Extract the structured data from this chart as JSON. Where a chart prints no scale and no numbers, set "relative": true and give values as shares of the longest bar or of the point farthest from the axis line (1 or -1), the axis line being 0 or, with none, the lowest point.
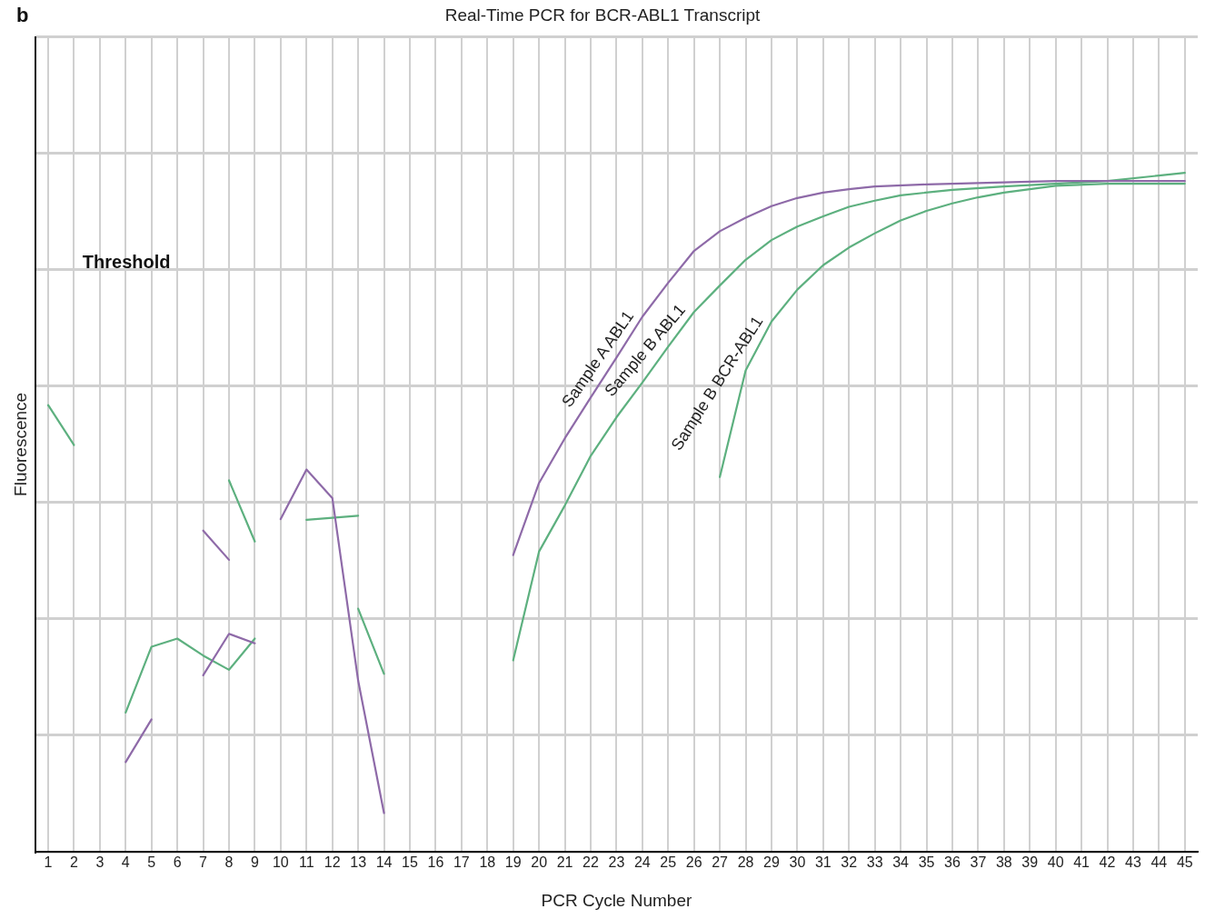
{
  "chart_data": {
    "type": "line",
    "title": "Real-Time PCR for BCR-ABL1 Transcript",
    "xlabel": "PCR Cycle Number",
    "ylabel": "Fluorescence",
    "annotations": [
      "b",
      "Threshold"
    ],
    "relative": true,
    "xlim": [
      0.5,
      45.5
    ],
    "xticks": [
      1,
      2,
      3,
      4,
      5,
      6,
      7,
      8,
      9,
      10,
      11,
      12,
      13,
      14,
      15,
      16,
      17,
      18,
      19,
      20,
      21,
      22,
      23,
      24,
      25,
      26,
      27,
      28,
      29,
      30,
      31,
      32,
      33,
      34,
      35,
      36,
      37,
      38,
      39,
      40,
      41,
      42,
      43,
      44,
      45
    ],
    "grid": true,
    "legend": false,
    "marker": "none",
    "line_style": "solid",
    "series": [
      {
        "name": "Sample A ABL1",
        "color": "#8e6aa8",
        "x": [
          19,
          20,
          21,
          22,
          23,
          24,
          25,
          26,
          27,
          28,
          29,
          30,
          31,
          32,
          33,
          35,
          37,
          40,
          45
        ],
        "values": [
          0.437,
          0.543,
          0.609,
          0.669,
          0.728,
          0.788,
          0.838,
          0.885,
          0.914,
          0.934,
          0.951,
          0.963,
          0.971,
          0.976,
          0.98,
          0.983,
          0.985,
          0.988,
          0.988
        ]
      },
      {
        "name": "Sample B ABL1",
        "color": "#5db07f",
        "x": [
          19,
          20,
          21,
          22,
          23,
          24,
          25,
          26,
          27,
          28,
          29,
          30,
          31,
          32,
          33,
          34,
          36,
          38,
          40,
          42,
          44,
          45
        ],
        "values": [
          0.282,
          0.442,
          0.51,
          0.583,
          0.64,
          0.691,
          0.744,
          0.795,
          0.834,
          0.872,
          0.901,
          0.921,
          0.936,
          0.95,
          0.959,
          0.967,
          0.975,
          0.98,
          0.984,
          0.988,
          0.996,
          1.0
        ]
      },
      {
        "name": "Sample B BCR-ABL1",
        "color": "#5db07f",
        "x": [
          27,
          28,
          29,
          30,
          31,
          32,
          33,
          34,
          35,
          36,
          37,
          38,
          40,
          42,
          45
        ],
        "values": [
          0.552,
          0.709,
          0.781,
          0.828,
          0.864,
          0.89,
          0.911,
          0.93,
          0.944,
          0.955,
          0.964,
          0.971,
          0.981,
          0.984,
          0.984
        ]
      },
      {
        "color": "#8e6aa8",
        "x": [
          4,
          5
        ],
        "values": [
          0.132,
          0.195
        ]
      },
      {
        "color": "#8e6aa8",
        "x": [
          7,
          8
        ],
        "values": [
          0.473,
          0.43
        ]
      },
      {
        "color": "#8e6aa8",
        "x": [
          7,
          8,
          9
        ],
        "values": [
          0.26,
          0.321,
          0.307
        ]
      },
      {
        "color": "#8e6aa8",
        "x": [
          10,
          11,
          12,
          13,
          14
        ],
        "values": [
          0.49,
          0.563,
          0.521,
          0.252,
          0.057
        ]
      },
      {
        "color": "#5db07f",
        "x": [
          1,
          2
        ],
        "values": [
          0.658,
          0.599
        ]
      },
      {
        "color": "#5db07f",
        "x": [
          4,
          5,
          6,
          7,
          8,
          9
        ],
        "values": [
          0.205,
          0.302,
          0.314,
          0.289,
          0.268,
          0.314
        ]
      },
      {
        "color": "#5db07f",
        "x": [
          8,
          9
        ],
        "values": [
          0.547,
          0.457
        ]
      },
      {
        "color": "#5db07f",
        "x": [
          11,
          13
        ],
        "values": [
          0.489,
          0.495
        ]
      },
      {
        "color": "#5db07f",
        "x": [
          13,
          14
        ],
        "values": [
          0.358,
          0.262
        ]
      }
    ]
  }
}
